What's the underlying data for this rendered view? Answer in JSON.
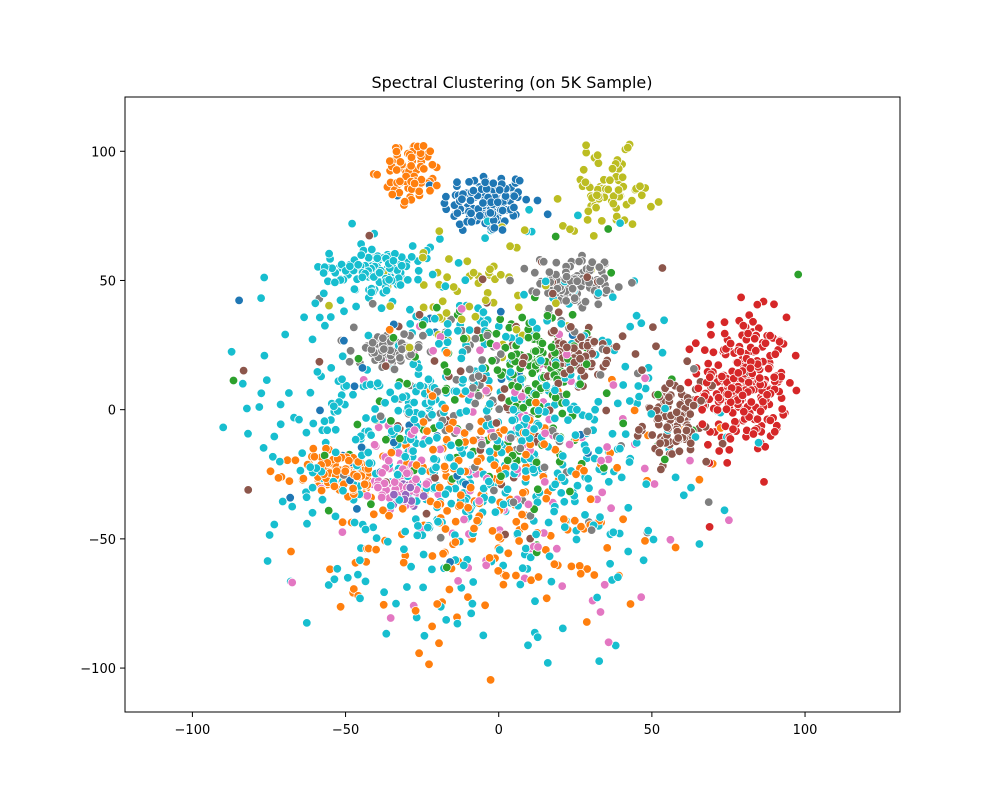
{
  "chart_data": {
    "type": "scatter",
    "title": "Spectral Clustering (on 5K Sample)",
    "xlabel": "",
    "ylabel": "",
    "xlim": [
      -122,
      131
    ],
    "ylim": [
      -117,
      121
    ],
    "xticks": [
      -100,
      -50,
      0,
      50,
      100
    ],
    "yticks": [
      -100,
      -50,
      0,
      50,
      100
    ],
    "xtick_labels": [
      "−100",
      "−50",
      "0",
      "50",
      "100"
    ],
    "ytick_labels": [
      "−100",
      "−50",
      "0",
      "50",
      "100"
    ],
    "grid": false,
    "legend": "none",
    "marker_edge_color": "#ffffff",
    "palette": {
      "blue": "#1f77b4",
      "orange": "#ff7f0e",
      "green": "#2ca02c",
      "red": "#d62728",
      "purple": "#9467bd",
      "brown": "#8c564b",
      "pink": "#e377c2",
      "gray": "#7f7f7f",
      "olive": "#bcbd22",
      "cyan": "#17becf"
    },
    "clusters": [
      {
        "color": "blue",
        "count": 130,
        "center": [
          -4,
          80
        ],
        "spread": [
          12,
          10
        ]
      },
      {
        "color": "red",
        "count": 260,
        "center": [
          80,
          10
        ],
        "spread": [
          12,
          22
        ]
      },
      {
        "color": "brown",
        "count": 110,
        "center": [
          58,
          -5
        ],
        "spread": [
          9,
          12
        ]
      },
      {
        "color": "brown",
        "count": 70,
        "center": [
          26,
          22
        ],
        "spread": [
          8,
          8
        ]
      },
      {
        "color": "gray",
        "count": 90,
        "center": [
          26,
          50
        ],
        "spread": [
          10,
          8
        ]
      },
      {
        "color": "gray",
        "count": 60,
        "center": [
          -37,
          22
        ],
        "spread": [
          10,
          7
        ]
      },
      {
        "color": "olive",
        "count": 70,
        "center": [
          36,
          85
        ],
        "spread": [
          12,
          12
        ]
      },
      {
        "color": "green",
        "count": 90,
        "center": [
          10,
          18
        ],
        "spread": [
          14,
          16
        ]
      },
      {
        "color": "pink",
        "count": 70,
        "center": [
          -32,
          -28
        ],
        "spread": [
          8,
          8
        ]
      },
      {
        "color": "purple",
        "count": 18,
        "center": [
          -30,
          -33
        ],
        "spread": [
          4,
          4
        ]
      },
      {
        "color": "orange",
        "count": 90,
        "center": [
          -52,
          -25
        ],
        "spread": [
          12,
          8
        ]
      },
      {
        "color": "orange",
        "count": 80,
        "center": [
          -28,
          92
        ],
        "spread": [
          8,
          10
        ]
      },
      {
        "color": "cyan",
        "count": 110,
        "center": [
          -40,
          55
        ],
        "spread": [
          14,
          7
        ]
      },
      {
        "color": "cyan",
        "count": 650,
        "center": [
          -10,
          -10
        ],
        "spread": [
          55,
          55
        ]
      },
      {
        "color": "orange",
        "count": 220,
        "center": [
          -5,
          -35
        ],
        "spread": [
          45,
          40
        ]
      },
      {
        "color": "pink",
        "count": 120,
        "center": [
          5,
          -20
        ],
        "spread": [
          45,
          45
        ]
      },
      {
        "color": "green",
        "count": 110,
        "center": [
          0,
          0
        ],
        "spread": [
          45,
          40
        ]
      },
      {
        "color": "gray",
        "count": 90,
        "center": [
          0,
          0
        ],
        "spread": [
          45,
          45
        ]
      },
      {
        "color": "brown",
        "count": 70,
        "center": [
          0,
          10
        ],
        "spread": [
          45,
          40
        ]
      },
      {
        "color": "olive",
        "count": 60,
        "center": [
          -10,
          45
        ],
        "spread": [
          30,
          20
        ]
      },
      {
        "color": "blue",
        "count": 30,
        "center": [
          -30,
          0
        ],
        "spread": [
          45,
          40
        ]
      }
    ]
  }
}
